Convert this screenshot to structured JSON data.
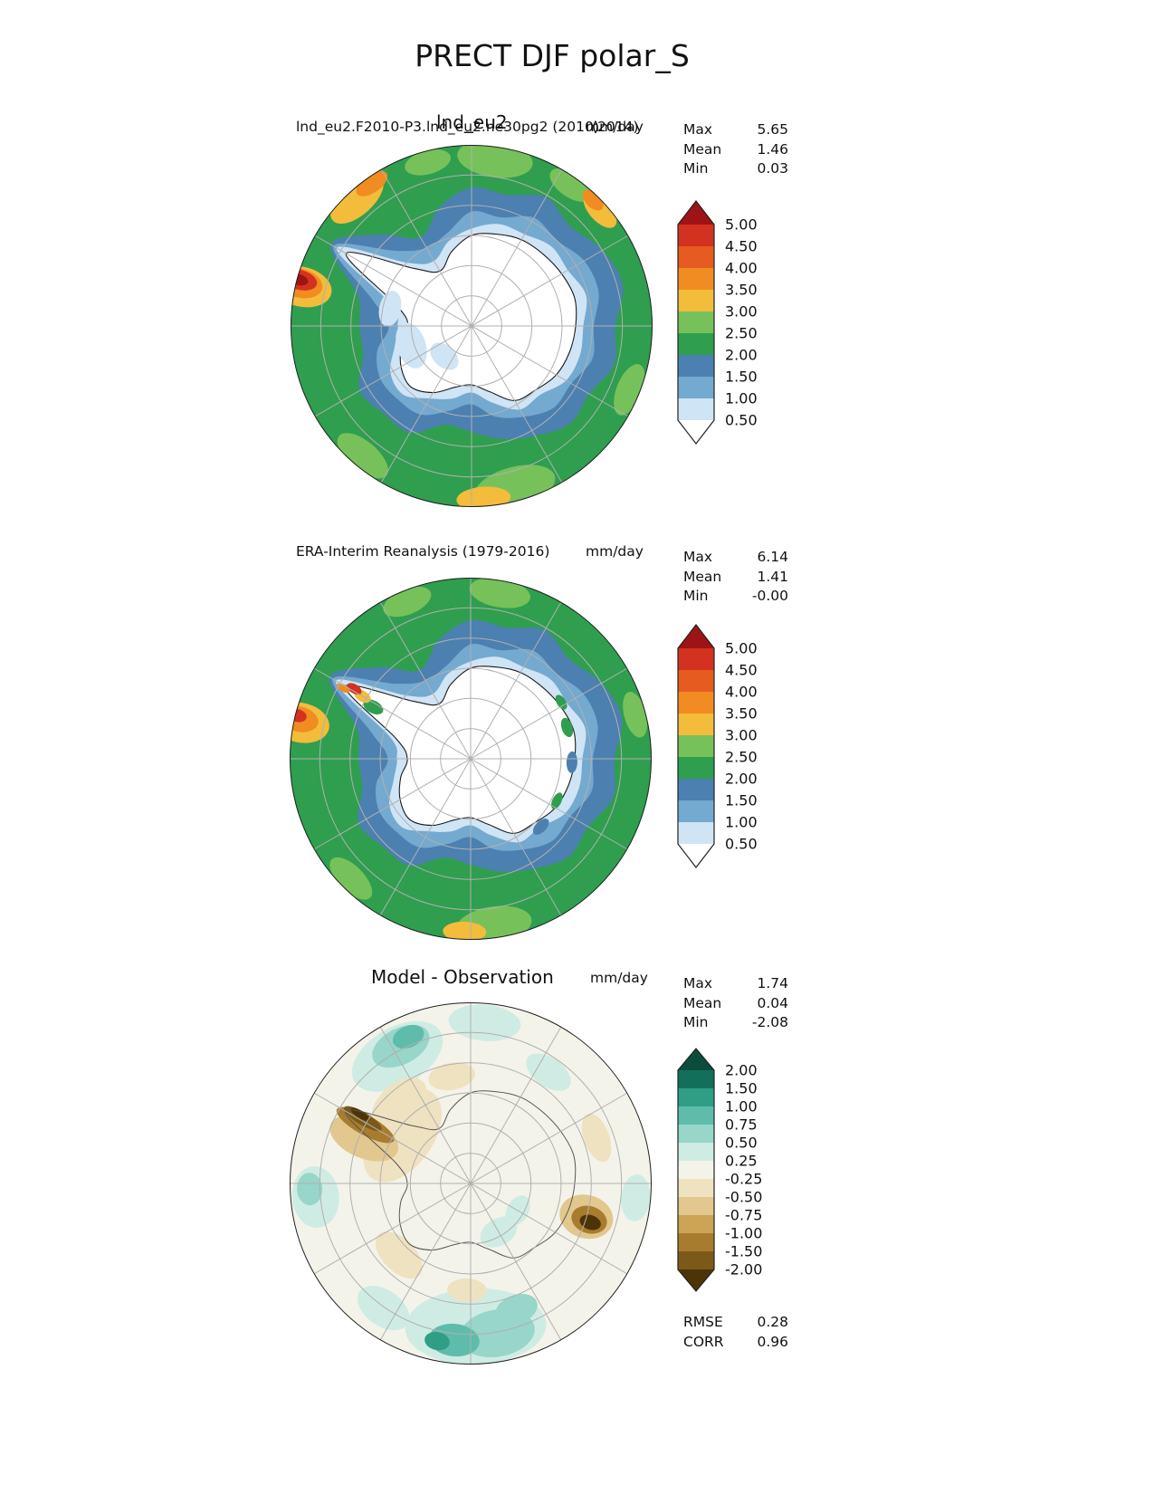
{
  "page_title": "PRECT DJF polar_S",
  "panels": [
    {
      "name": "model",
      "title_case": "lnd_eu2.F2010-P3.lnd_eu2.ne30pg2 (2010)",
      "title_center": "lnd_eu2",
      "title_units": "mm/day",
      "title_years": "(2014)",
      "stats": {
        "max_label": "Max",
        "max": "5.65",
        "mean_label": "Mean",
        "mean": "1.46",
        "min_label": "Min",
        "min": "0.03"
      },
      "colorbar": {
        "labels": [
          "5.00",
          "4.50",
          "4.00",
          "3.50",
          "3.00",
          "2.50",
          "2.00",
          "1.50",
          "1.00",
          "0.50"
        ],
        "colors": [
          "#9e1315",
          "#d33220",
          "#e65c20",
          "#f08c21",
          "#f3bc3b",
          "#77c15a",
          "#2f9e4f",
          "#4c80b0",
          "#74a9d0",
          "#cfe4f5",
          "#ffffff"
        ]
      }
    },
    {
      "name": "observation",
      "title_case": "ERA-Interim Reanalysis (1979-2016)",
      "title_units": "mm/day",
      "stats": {
        "max_label": "Max",
        "max": "6.14",
        "mean_label": "Mean",
        "mean": "1.41",
        "min_label": "Min",
        "min": "-0.00"
      },
      "colorbar": {
        "labels": [
          "5.00",
          "4.50",
          "4.00",
          "3.50",
          "3.00",
          "2.50",
          "2.00",
          "1.50",
          "1.00",
          "0.50"
        ],
        "colors": [
          "#9e1315",
          "#d33220",
          "#e65c20",
          "#f08c21",
          "#f3bc3b",
          "#77c15a",
          "#2f9e4f",
          "#4c80b0",
          "#74a9d0",
          "#cfe4f5",
          "#ffffff"
        ]
      }
    },
    {
      "name": "difference",
      "title_case": "Model - Observation",
      "title_units": "mm/day",
      "stats": {
        "max_label": "Max",
        "max": "1.74",
        "mean_label": "Mean",
        "mean": "0.04",
        "min_label": "Min",
        "min": "-2.08"
      },
      "colorbar": {
        "labels": [
          "2.00",
          "1.50",
          "1.00",
          "0.75",
          "0.50",
          "0.25",
          "-0.25",
          "-0.50",
          "-0.75",
          "-1.00",
          "-1.50",
          "-2.00"
        ],
        "colors": [
          "#0c4c3c",
          "#12705a",
          "#2f9e85",
          "#5fbcab",
          "#97d6c8",
          "#cfece4",
          "#f4f3ea",
          "#efe2c0",
          "#e2c88e",
          "#cda355",
          "#a87c2f",
          "#7b5a18",
          "#4d3407"
        ]
      },
      "metrics": {
        "rmse_label": "RMSE",
        "rmse": "0.28",
        "corr_label": "CORR",
        "corr": "0.96"
      }
    }
  ],
  "chart_data": {
    "type": "heatmap",
    "subtype": "south-polar-stereographic-contour-maps",
    "figure_title": "PRECT DJF polar_S",
    "variable": "PRECT",
    "season": "DJF",
    "region": "polar_S",
    "units": "mm/day",
    "panels": [
      {
        "title": "lnd_eu2 — lnd_eu2.F2010-P3.lnd_eu2.ne30pg2 (2010) (2014)",
        "stats": {
          "max": 5.65,
          "mean": 1.46,
          "min": 0.03
        },
        "contour_levels": [
          0.5,
          1.0,
          1.5,
          2.0,
          2.5,
          3.0,
          3.5,
          4.0,
          4.5,
          5.0
        ],
        "colormap": "white-blue-green-yellow-red"
      },
      {
        "title": "ERA-Interim Reanalysis (1979-2016)",
        "stats": {
          "max": 6.14,
          "mean": 1.41,
          "min": -0.0
        },
        "contour_levels": [
          0.5,
          1.0,
          1.5,
          2.0,
          2.5,
          3.0,
          3.5,
          4.0,
          4.5,
          5.0
        ],
        "colormap": "white-blue-green-yellow-red"
      },
      {
        "title": "Model - Observation",
        "stats": {
          "max": 1.74,
          "mean": 0.04,
          "min": -2.08
        },
        "metrics": {
          "rmse": 0.28,
          "corr": 0.96
        },
        "contour_levels": [
          -2.0,
          -1.5,
          -1.0,
          -0.75,
          -0.5,
          -0.25,
          0.25,
          0.5,
          0.75,
          1.0,
          1.5,
          2.0
        ],
        "colormap": "brown-white-teal-diverging"
      }
    ],
    "legend_position": "right",
    "grid": "polar graticule, meridians every 30 deg, 5 latitude circles"
  }
}
